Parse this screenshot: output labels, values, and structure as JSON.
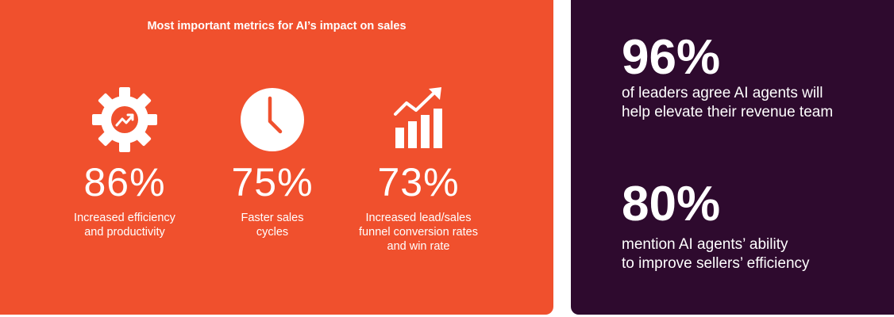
{
  "left": {
    "title": "Most important metrics for AI’s impact on sales",
    "metrics": [
      {
        "icon": "gear-trend-icon",
        "value": "86%",
        "label_line1": "Increased efficiency",
        "label_line2": "and productivity",
        "label_line3": ""
      },
      {
        "icon": "clock-icon",
        "value": "75%",
        "label_line1": "Faster sales",
        "label_line2": "cycles",
        "label_line3": ""
      },
      {
        "icon": "bar-growth-icon",
        "value": "73%",
        "label_line1": "Increased lead/sales",
        "label_line2": "funnel conversion rates",
        "label_line3": "and win rate"
      }
    ]
  },
  "right": {
    "stats": [
      {
        "value": "96%",
        "line1": "of leaders agree AI agents will",
        "line2": "help elevate their revenue team"
      },
      {
        "value": "80%",
        "line1": "mention AI agents’ ability",
        "line2": "to improve sellers’ efficiency"
      }
    ]
  },
  "colors": {
    "left_background": "#f0502d",
    "right_background": "#2e0a2e",
    "text": "#ffffff"
  }
}
